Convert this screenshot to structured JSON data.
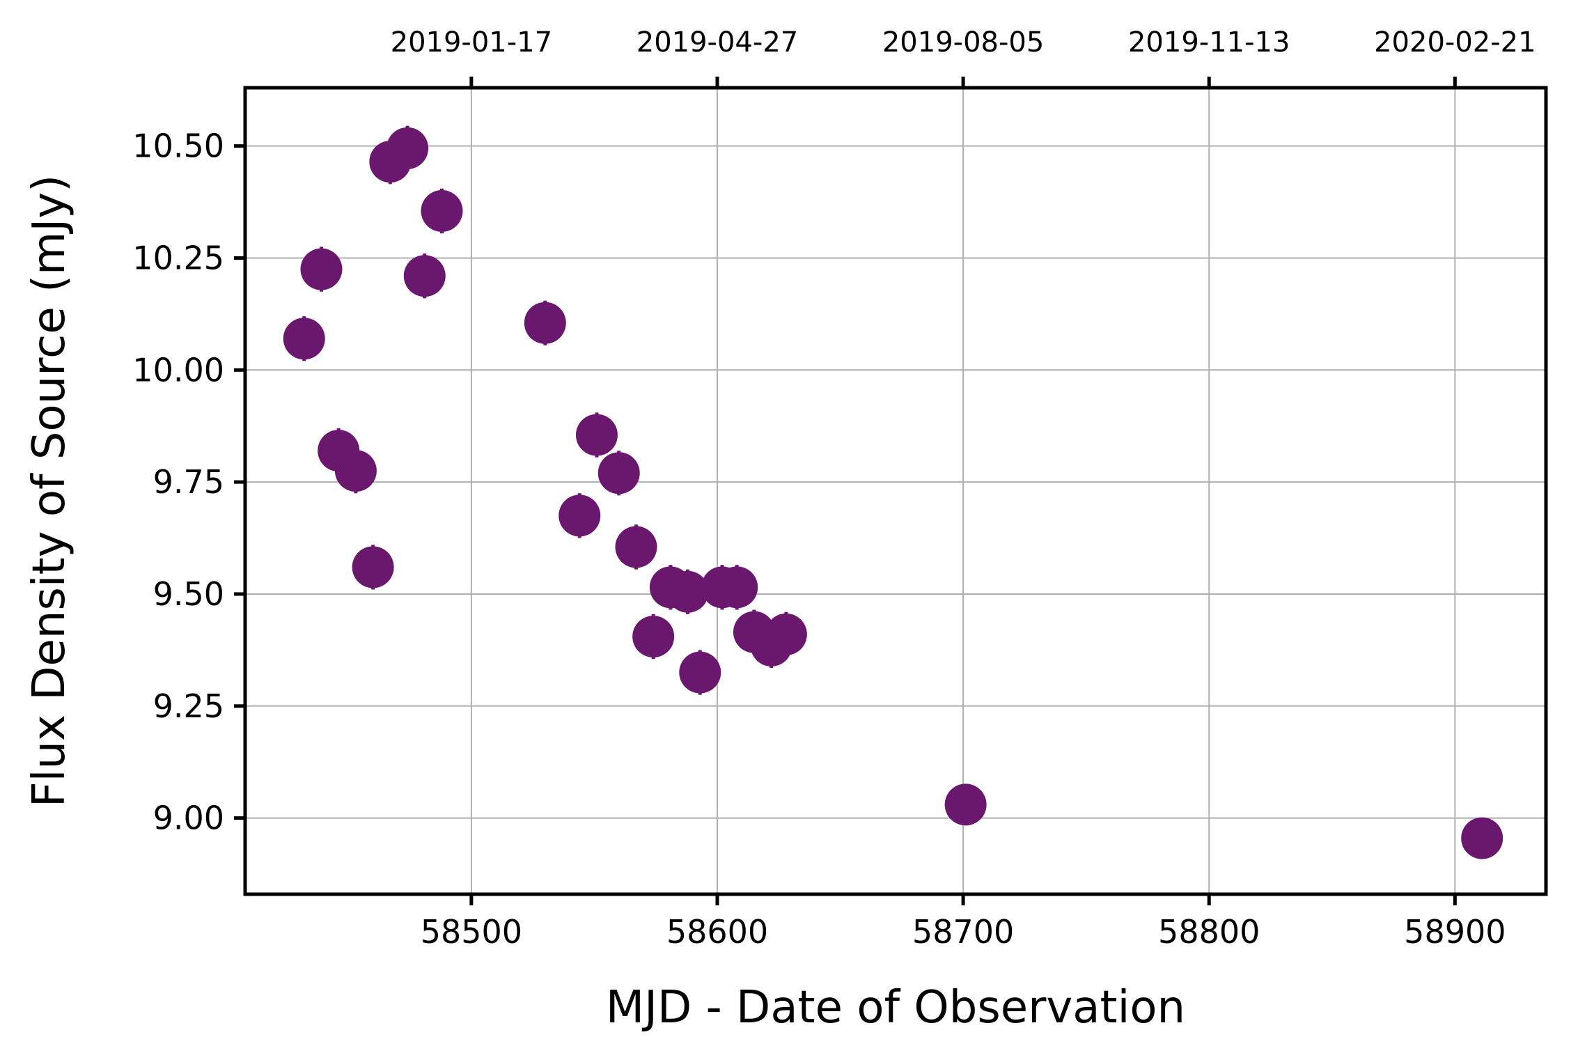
{
  "chart_data": {
    "type": "scatter",
    "xlabel": "MJD - Date of Observation",
    "ylabel": "Flux Density of Source (mJy)",
    "xlim": [
      58408,
      58937
    ],
    "ylim": [
      8.83,
      10.63
    ],
    "xticks": [
      58500,
      58600,
      58700,
      58800,
      58900
    ],
    "xtick_labels": [
      "58500",
      "58600",
      "58700",
      "58800",
      "58900"
    ],
    "yticks": [
      9.0,
      9.25,
      9.5,
      9.75,
      10.0,
      10.25,
      10.5
    ],
    "ytick_labels": [
      "9.00",
      "9.25",
      "9.50",
      "9.75",
      "10.00",
      "10.25",
      "10.50"
    ],
    "top_axis": {
      "ticks": [
        58500,
        58600,
        58700,
        58800,
        58900
      ],
      "tick_labels": [
        "2019-01-17",
        "2019-04-27",
        "2019-08-05",
        "2019-11-13",
        "2020-02-21"
      ]
    },
    "grid": true,
    "marker_color": "#6a186e",
    "points": [
      {
        "x": 58432,
        "y": 10.07,
        "err": 0.05
      },
      {
        "x": 58439,
        "y": 10.225,
        "err": 0.05
      },
      {
        "x": 58446,
        "y": 9.82,
        "err": 0.05
      },
      {
        "x": 58453,
        "y": 9.775,
        "err": 0.05
      },
      {
        "x": 58460,
        "y": 9.56,
        "err": 0.05
      },
      {
        "x": 58467,
        "y": 10.465,
        "err": 0.05
      },
      {
        "x": 58474,
        "y": 10.495,
        "err": 0.05
      },
      {
        "x": 58481,
        "y": 10.21,
        "err": 0.05
      },
      {
        "x": 58488,
        "y": 10.355,
        "err": 0.05
      },
      {
        "x": 58530,
        "y": 10.105,
        "err": 0.05
      },
      {
        "x": 58544,
        "y": 9.675,
        "err": 0.05
      },
      {
        "x": 58551,
        "y": 9.855,
        "err": 0.05
      },
      {
        "x": 58560,
        "y": 9.77,
        "err": 0.05
      },
      {
        "x": 58567,
        "y": 9.605,
        "err": 0.05
      },
      {
        "x": 58574,
        "y": 9.405,
        "err": 0.05
      },
      {
        "x": 58581,
        "y": 9.515,
        "err": 0.05
      },
      {
        "x": 58588,
        "y": 9.505,
        "err": 0.05
      },
      {
        "x": 58593,
        "y": 9.325,
        "err": 0.05
      },
      {
        "x": 58602,
        "y": 9.515,
        "err": 0.05
      },
      {
        "x": 58608,
        "y": 9.515,
        "err": 0.05
      },
      {
        "x": 58615,
        "y": 9.415,
        "err": 0.05
      },
      {
        "x": 58622,
        "y": 9.385,
        "err": 0.05
      },
      {
        "x": 58628,
        "y": 9.41,
        "err": 0.05
      },
      {
        "x": 58701,
        "y": 9.03,
        "err": 0.03
      },
      {
        "x": 58911,
        "y": 8.955,
        "err": 0.03
      }
    ]
  }
}
